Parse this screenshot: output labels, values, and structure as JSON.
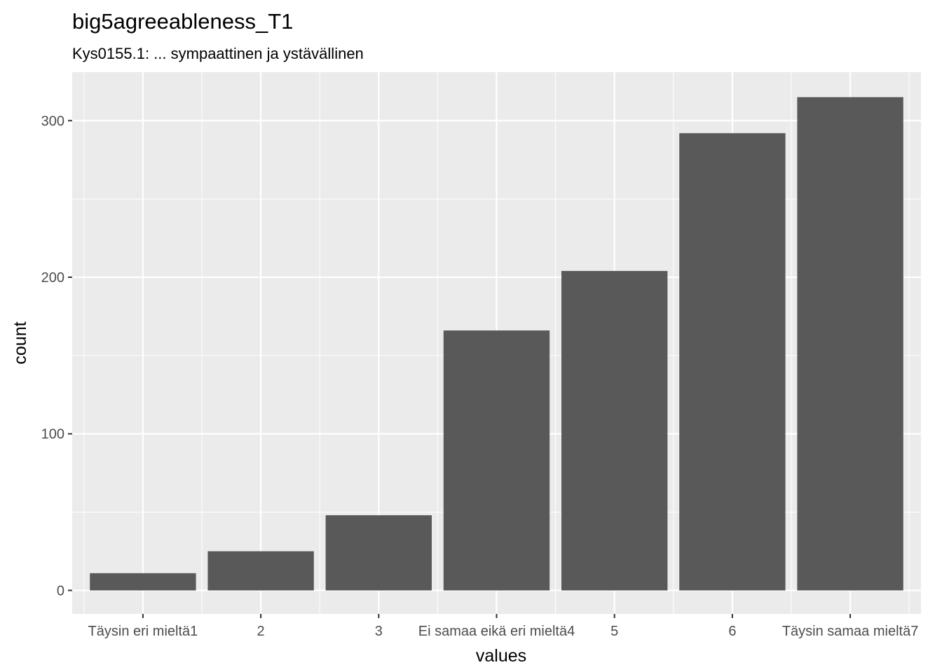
{
  "chart_data": {
    "type": "bar",
    "title": "big5agreeableness_T1",
    "subtitle": "Kys0155.1: ... sympaattinen ja ystävällinen",
    "xlabel": "values",
    "ylabel": "count",
    "categories": [
      "Täysin eri mieltä1",
      "2",
      "3",
      "Ei samaa eikä eri mieltä4",
      "5",
      "6",
      "Täysin samaa mieltä7"
    ],
    "values": [
      11,
      25,
      48,
      166,
      204,
      292,
      315
    ],
    "ylim": [
      -15,
      331
    ],
    "yticks": [
      0,
      100,
      200,
      300
    ],
    "ytick_labels": [
      "0",
      "100",
      "200",
      "300"
    ],
    "grid": true,
    "legend": "none",
    "colors": {
      "panel": "#ebebeb",
      "grid_major": "#ffffff",
      "bar": "#595959",
      "tick_text": "#4d4d4d"
    }
  }
}
